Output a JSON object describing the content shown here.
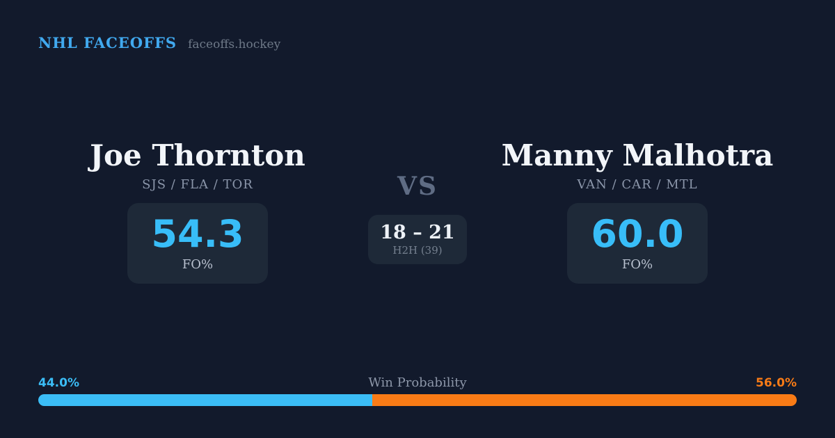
{
  "brand": {
    "title": "NHL FACEOFFS",
    "site": "faceoffs.hockey"
  },
  "players": {
    "left": {
      "name": "Joe Thornton",
      "teams": "SJS / FLA / TOR",
      "stat_value": "54.3",
      "stat_label": "FO%"
    },
    "right": {
      "name": "Manny Malhotra",
      "teams": "VAN / CAR / MTL",
      "stat_value": "60.0",
      "stat_label": "FO%"
    }
  },
  "matchup": {
    "vs_label": "VS",
    "h2h": {
      "score": "18 – 21",
      "label": "H2H (39)"
    }
  },
  "win_probability": {
    "label": "Win Probability",
    "left": {
      "text": "44.0%",
      "value": 44.0,
      "color": "#3bbdf6"
    },
    "right": {
      "text": "56.0%",
      "value": 56.0,
      "color": "#f97b16"
    }
  },
  "colors": {
    "background": "#121a2c",
    "card": "#1e2938",
    "accent_blue": "#38bdf8",
    "accent_orange": "#f97b16",
    "brand_blue": "#41a9ef"
  }
}
